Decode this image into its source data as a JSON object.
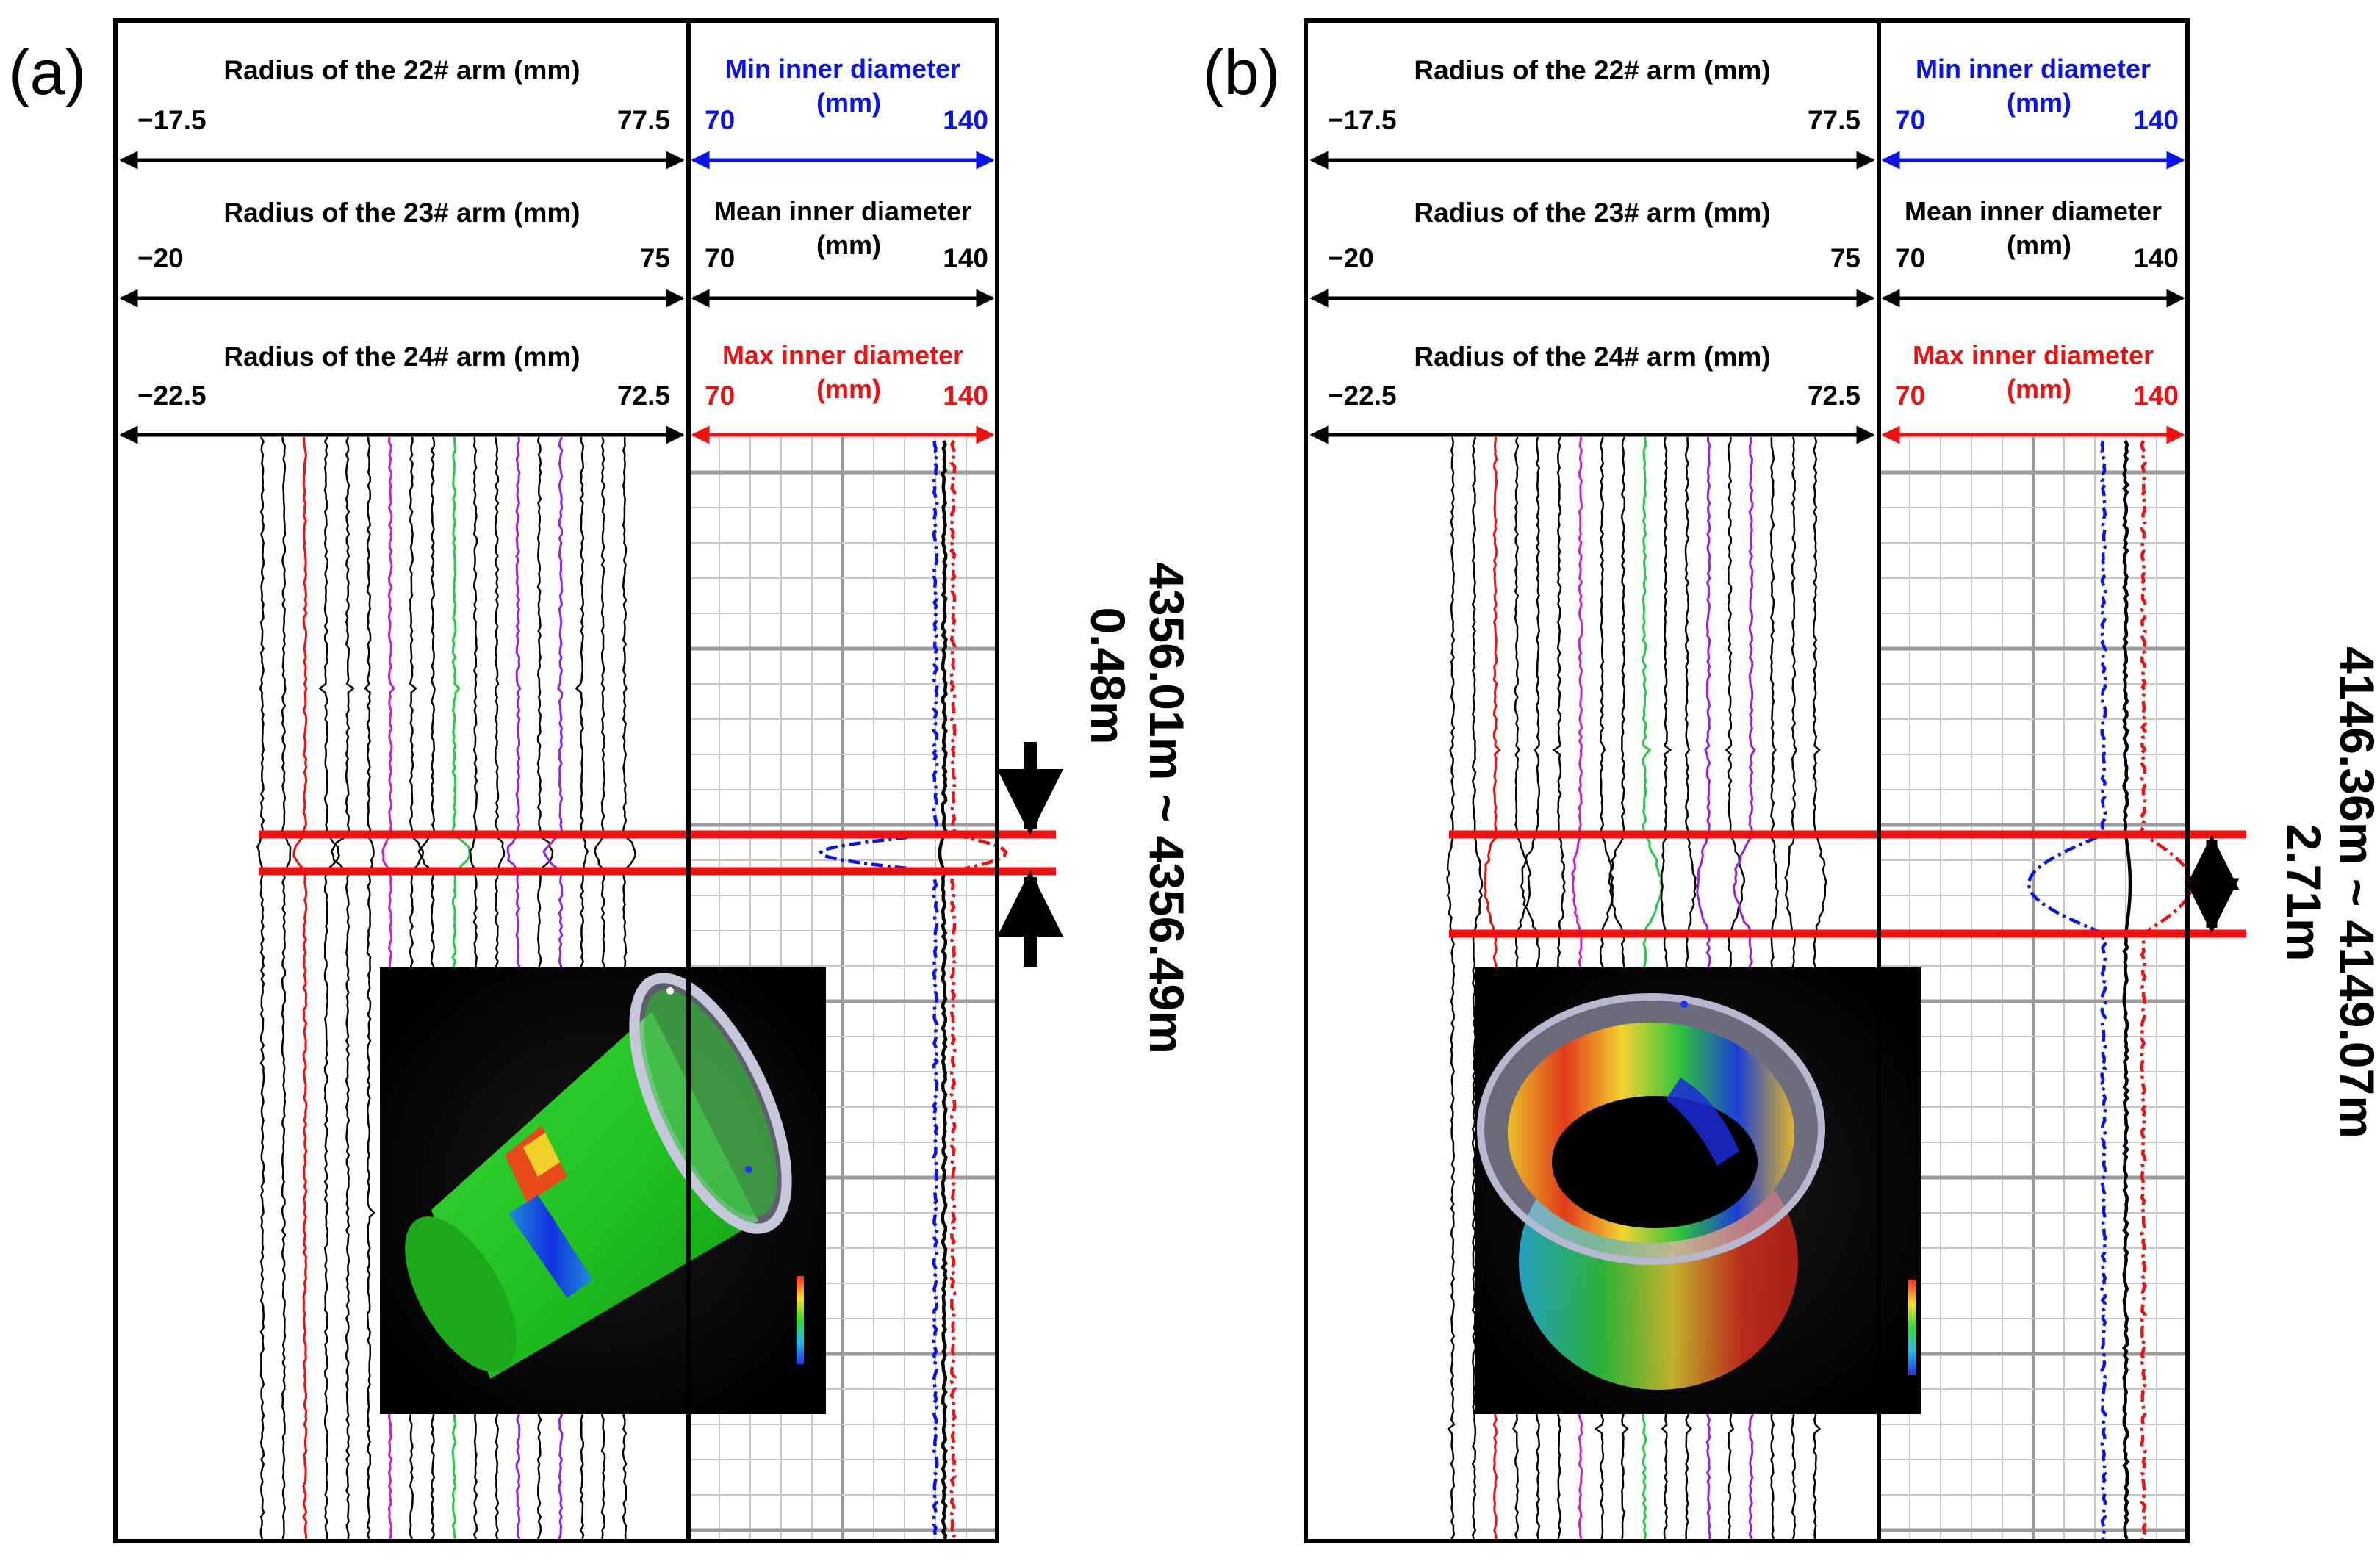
{
  "chart_data": [
    {
      "type": "line",
      "panel_label": "(a)",
      "left_track": {
        "arms": [
          {
            "title": "Radius of the 22# arm (mm)",
            "min": "−17.5",
            "max": "77.5"
          },
          {
            "title": "Radius of the 23# arm (mm)",
            "min": "−20",
            "max": "75"
          },
          {
            "title": "Radius of the 24# arm (mm)",
            "min": "−22.5",
            "max": "72.5"
          }
        ]
      },
      "right_track": {
        "series": [
          {
            "name": "Min inner diameter",
            "unit": "(mm)",
            "min": "70",
            "max": "140",
            "color": "#0a14e6"
          },
          {
            "name": "Mean inner diameter",
            "unit": "(mm)",
            "min": "70",
            "max": "140",
            "color": "#000000"
          },
          {
            "name": "Max inner diameter",
            "unit": "(mm)",
            "min": "70",
            "max": "140",
            "color": "#ee1111"
          }
        ],
        "baseline": {
          "min": 126,
          "mean": 128,
          "max": 130
        },
        "anomaly": {
          "min": 100,
          "mean": 127,
          "max": 142
        }
      },
      "depth_range": "4356.01m ~ 4356.49m",
      "thickness": "0.48m",
      "inset": "3d-tube-green"
    },
    {
      "type": "line",
      "panel_label": "(b)",
      "left_track": {
        "arms": [
          {
            "title": "Radius of the 22# arm (mm)",
            "min": "−17.5",
            "max": "77.5"
          },
          {
            "title": "Radius of the 23# arm (mm)",
            "min": "−20",
            "max": "75"
          },
          {
            "title": "Radius of the 24# arm (mm)",
            "min": "−22.5",
            "max": "72.5"
          }
        ]
      },
      "right_track": {
        "series": [
          {
            "name": "Min inner diameter",
            "unit": "(mm)",
            "min": "70",
            "max": "140",
            "color": "#0a14e6"
          },
          {
            "name": "Mean inner diameter",
            "unit": "(mm)",
            "min": "70",
            "max": "140",
            "color": "#000000"
          },
          {
            "name": "Max inner diameter",
            "unit": "(mm)",
            "min": "70",
            "max": "140",
            "color": "#ee1111"
          }
        ],
        "baseline": {
          "min": 121,
          "mean": 126,
          "max": 130
        },
        "anomaly": {
          "min": 104,
          "mean": 127,
          "max": 141
        }
      },
      "depth_range": "4146.36m ~ 4149.07m",
      "thickness": "2.71m",
      "inset": "3d-tube-colored"
    }
  ],
  "colors": {
    "red_marker": "#ee1111",
    "min_color": "#0a14e6",
    "mean_color": "#000000",
    "max_color": "#ee1111",
    "grid": "#c8c8c8"
  }
}
